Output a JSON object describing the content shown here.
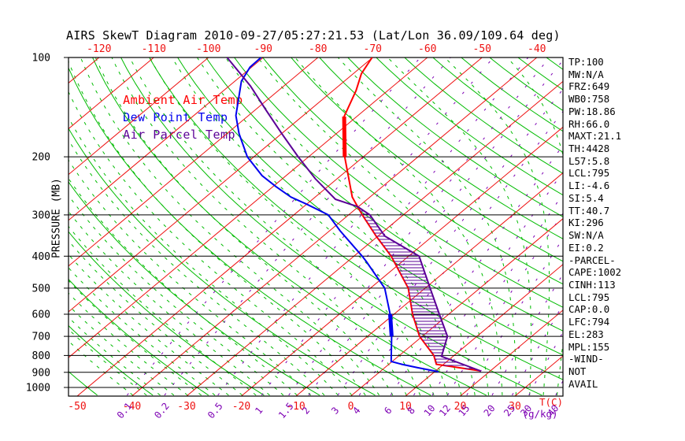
{
  "title": "AIRS SkewT Diagram 2010-09-27/05:27:21.53 (Lat/Lon 36.09/109.64 deg)",
  "colors": {
    "ambient": "#ff0000",
    "dewpoint": "#0000ee",
    "parcel": "#5a0096",
    "isotherm_grid": "#ee1111",
    "adiabat_grid": "#00bb00",
    "mixing_grid": "#7d00b4",
    "axis": "#000000"
  },
  "legend": [
    {
      "label": "Ambient Air Temp",
      "color": "#ff0000"
    },
    {
      "label": "Dew Point Temp",
      "color": "#0000ee"
    },
    {
      "label": "Air Parcel Temp",
      "color": "#5a0096"
    }
  ],
  "axes": {
    "pressure_label": "PRESSURE (MB)",
    "pressure_ticks": [
      100,
      200,
      300,
      400,
      500,
      600,
      700,
      800,
      900,
      1000
    ],
    "temp_top_ticks": [
      -120,
      -110,
      -100,
      -90,
      -80,
      -70,
      -60,
      -50,
      -40
    ],
    "temp_bottom_ticks": [
      -50,
      -40,
      -30,
      -20,
      -10,
      0,
      10,
      20,
      30
    ],
    "temp_unit_label": "T(C)",
    "mixing_unit_label": "(g/kg)",
    "mixing_ticks": [
      0.1,
      0.2,
      0.5,
      1,
      1.5,
      2,
      3,
      4,
      6,
      8,
      10,
      12,
      15,
      20,
      25,
      30,
      40
    ]
  },
  "chart_data": {
    "type": "line",
    "x_axis": "temperature (C), skewed",
    "y_axis": "pressure (mb), log scale",
    "ylim": [
      100,
      1059
    ],
    "xlim_bottom": [
      -51.6,
      38.8
    ],
    "grid": {
      "isotherm_step_C": 10,
      "dry_adiabat_step_K": 10,
      "moist_adiabat_step_C": 2.5,
      "mixing_ratio_lines_gkg": [
        0.1,
        0.2,
        0.5,
        1,
        1.5,
        2,
        3,
        4,
        6,
        8,
        10,
        12,
        15,
        20,
        25,
        30,
        40
      ]
    },
    "series": [
      {
        "name": "Ambient Air Temp",
        "color": "#ff0000",
        "points_p_t": [
          [
            100,
            -70.1
          ],
          [
            112,
            -68.5
          ],
          [
            126,
            -65.8
          ],
          [
            151,
            -62.3
          ],
          [
            200,
            -53.4
          ],
          [
            265,
            -43.2
          ],
          [
            300,
            -37.5
          ],
          [
            348,
            -30.3
          ],
          [
            400,
            -23.2
          ],
          [
            500,
            -13.1
          ],
          [
            600,
            -6.6
          ],
          [
            700,
            -0.5
          ],
          [
            800,
            6.3
          ],
          [
            851,
            8.7
          ],
          [
            891,
            18.2
          ]
        ],
        "thick_segment_p": [
          151,
          200
        ]
      },
      {
        "name": "Dew Point Temp",
        "color": "#0000ee",
        "points_p_t": [
          [
            100,
            -90.4
          ],
          [
            107,
            -90.3
          ],
          [
            118,
            -88.8
          ],
          [
            150,
            -82.3
          ],
          [
            170,
            -77.8
          ],
          [
            200,
            -71.2
          ],
          [
            228,
            -64.4
          ],
          [
            246,
            -59.5
          ],
          [
            265,
            -54.4
          ],
          [
            279,
            -49.8
          ],
          [
            300,
            -43.7
          ],
          [
            335,
            -38.1
          ],
          [
            400,
            -28.5
          ],
          [
            415,
            -26.6
          ],
          [
            500,
            -17.4
          ],
          [
            600,
            -10.7
          ],
          [
            700,
            -5.6
          ],
          [
            834,
            -0.2
          ],
          [
            851,
            2.4
          ],
          [
            871,
            6.0
          ],
          [
            896,
            10.7
          ]
        ],
        "thick_segment_p": [
          600,
          700
        ]
      },
      {
        "name": "Air Parcel Temp",
        "color": "#5a0096",
        "points_p_t": [
          [
            100,
            -96.6
          ],
          [
            122,
            -86.1
          ],
          [
            144,
            -78.1
          ],
          [
            170,
            -70.0
          ],
          [
            200,
            -61.9
          ],
          [
            233,
            -54.0
          ],
          [
            269,
            -45.8
          ],
          [
            283,
            -40.2
          ],
          [
            300,
            -36.1
          ],
          [
            348,
            -28.7
          ],
          [
            400,
            -18.1
          ],
          [
            500,
            -9.1
          ],
          [
            600,
            -1.7
          ],
          [
            700,
            4.6
          ],
          [
            805,
            7.9
          ],
          [
            891,
            18.2
          ]
        ]
      }
    ],
    "cape_hatch": {
      "between": [
        "Ambient Air Temp",
        "Air Parcel Temp"
      ],
      "p_range_mb": [
        283,
        891
      ]
    }
  },
  "stats": {
    "items": [
      "TP:100",
      "MW:N/A",
      "FRZ:649",
      "WB0:758",
      "PW:18.86",
      "RH:66.0",
      "MAXT:21.1",
      "TH:4428",
      "L57:5.8",
      "LCL:795",
      "LI:-4.6",
      "SI:5.4",
      "TT:40.7",
      "KI:296",
      "SW:N/A",
      "EI:0.2",
      "-PARCEL-",
      "CAPE:1002",
      "CINH:113",
      "LCL:795",
      "CAP:0.0",
      "LFC:794",
      "EL:283",
      "MPL:155",
      "-WIND-",
      "NOT",
      "AVAIL"
    ]
  }
}
